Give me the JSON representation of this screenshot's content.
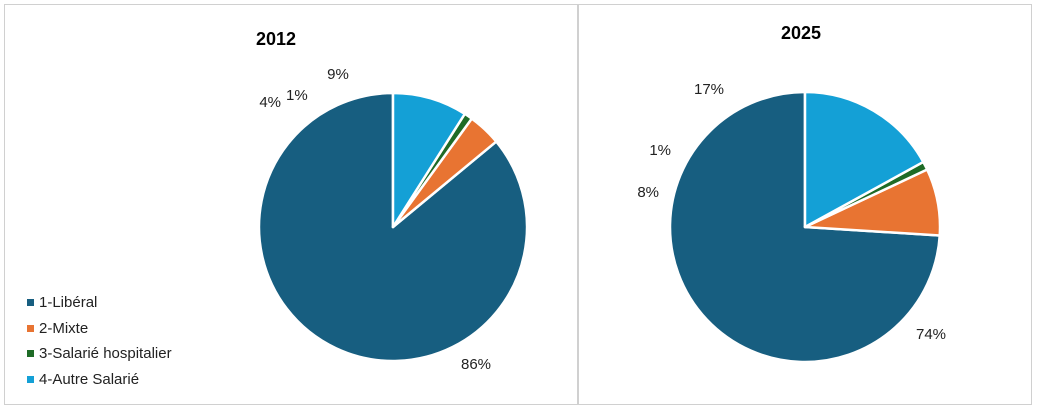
{
  "colors": {
    "liberal": "#175E80",
    "mixte": "#E87432",
    "salarie_hospitalier": "#1E6B26",
    "autre_salarie": "#14A0D6"
  },
  "legend": {
    "items": [
      {
        "label": "1-Libéral",
        "color": "#175E80"
      },
      {
        "label": "2-Mixte",
        "color": "#E87432"
      },
      {
        "label": "3-Salarié hospitalier",
        "color": "#1E6B26"
      },
      {
        "label": "4-Autre Salarié",
        "color": "#14A0D6"
      }
    ]
  },
  "chart_data": [
    {
      "type": "pie",
      "title": "2012",
      "categories": [
        "1-Libéral",
        "2-Mixte",
        "3-Salarié hospitalier",
        "4-Autre Salarié"
      ],
      "values": [
        86,
        4,
        1,
        9
      ],
      "labels": [
        "86%",
        "4%",
        "1%",
        "9%"
      ]
    },
    {
      "type": "pie",
      "title": "2025",
      "categories": [
        "1-Libéral",
        "2-Mixte",
        "3-Salarié hospitalier",
        "4-Autre Salarié"
      ],
      "values": [
        74,
        8,
        1,
        17
      ],
      "labels": [
        "74%",
        "8%",
        "1%",
        "17%"
      ]
    }
  ]
}
